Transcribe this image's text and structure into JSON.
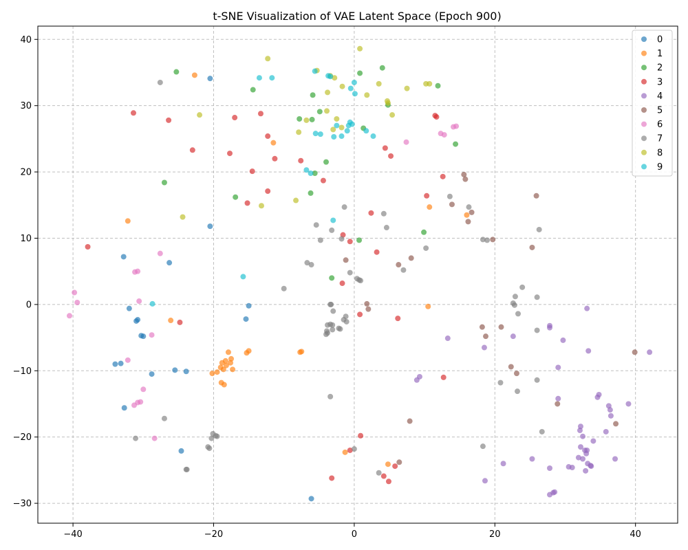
{
  "chart_data": {
    "type": "scatter",
    "title": "t-SNE Visualization of VAE Latent Space (Epoch 900)",
    "xlabel": "",
    "ylabel": "",
    "xlim": [
      -45,
      46
    ],
    "ylim": [
      -33,
      42
    ],
    "xticks": [
      -40,
      -20,
      0,
      20,
      40
    ],
    "yticks": [
      -30,
      -20,
      -10,
      0,
      10,
      20,
      30,
      40
    ],
    "grid": true,
    "legend_position": "top-right",
    "series": [
      {
        "name": "0",
        "color": "#1f77b4",
        "points": [
          [
            -20.5,
            34.1
          ],
          [
            -20.5,
            11.8
          ],
          [
            -32.8,
            7.2
          ],
          [
            -26.3,
            6.3
          ],
          [
            -15,
            -0.2
          ],
          [
            -32,
            -0.6
          ],
          [
            -15.4,
            -2.2
          ],
          [
            -30.8,
            -2.3
          ],
          [
            -31,
            -2.5
          ],
          [
            -30.3,
            -4.7
          ],
          [
            -30,
            -4.8
          ],
          [
            -34,
            -9
          ],
          [
            -33.2,
            -8.9
          ],
          [
            -28.8,
            -10.5
          ],
          [
            -25.5,
            -9.9
          ],
          [
            -23.9,
            -10.1
          ],
          [
            -32.7,
            -15.6
          ],
          [
            -24.6,
            -22.1
          ],
          [
            -6.1,
            -29.3
          ]
        ]
      },
      {
        "name": "1",
        "color": "#ff7f0e",
        "points": [
          [
            -22.7,
            34.6
          ],
          [
            -11.5,
            24.4
          ],
          [
            -32.2,
            12.6
          ],
          [
            -26.1,
            -2.4
          ],
          [
            10.7,
            14.7
          ],
          [
            16,
            13.5
          ],
          [
            10.5,
            -0.3
          ],
          [
            -17.9,
            -7.2
          ],
          [
            -17.5,
            -8.2
          ],
          [
            -18.3,
            -8.5
          ],
          [
            -18.8,
            -8.8
          ],
          [
            -19,
            -9.5
          ],
          [
            -18.6,
            -9.8
          ],
          [
            -19.5,
            -10.2
          ],
          [
            -20.2,
            -10.4
          ],
          [
            -17.3,
            -9.8
          ],
          [
            -18.9,
            -11.8
          ],
          [
            -18.5,
            -12.1
          ],
          [
            -18.2,
            -9.2
          ],
          [
            -17.6,
            -8.8
          ],
          [
            -15,
            -7
          ],
          [
            -15.3,
            -7.3
          ],
          [
            -7.5,
            -7.1
          ],
          [
            -7.7,
            -7.2
          ],
          [
            -1.3,
            -22.3
          ],
          [
            4.8,
            -24.1
          ]
        ]
      },
      {
        "name": "2",
        "color": "#2ca02c",
        "points": [
          [
            -25.3,
            35.1
          ],
          [
            -14.4,
            32.4
          ],
          [
            0.8,
            34.9
          ],
          [
            4,
            35.7
          ],
          [
            -5.9,
            31.6
          ],
          [
            11.9,
            33
          ],
          [
            4.8,
            30.1
          ],
          [
            -4.9,
            29.1
          ],
          [
            -7.8,
            28
          ],
          [
            -6,
            27.9
          ],
          [
            1.3,
            26.6
          ],
          [
            14.4,
            24.2
          ],
          [
            -4,
            21.5
          ],
          [
            -5.6,
            19.8
          ],
          [
            -6.2,
            16.8
          ],
          [
            -16.9,
            16.2
          ],
          [
            -27,
            18.4
          ],
          [
            9.9,
            10.9
          ],
          [
            0.7,
            9.7
          ],
          [
            -3.2,
            4
          ]
        ]
      },
      {
        "name": "3",
        "color": "#d62728",
        "points": [
          [
            -31.4,
            28.9
          ],
          [
            -13.3,
            28.8
          ],
          [
            -26.4,
            27.8
          ],
          [
            -17,
            28.2
          ],
          [
            -12.3,
            25.4
          ],
          [
            -23,
            23.3
          ],
          [
            -17.7,
            22.8
          ],
          [
            -11.3,
            22
          ],
          [
            -7.6,
            21.7
          ],
          [
            -14.5,
            20.1
          ],
          [
            11.5,
            28.5
          ],
          [
            11.7,
            28.3
          ],
          [
            4.4,
            23.6
          ],
          [
            5.2,
            22.4
          ],
          [
            -4.4,
            18.7
          ],
          [
            12.6,
            19.3
          ],
          [
            -12.3,
            17.1
          ],
          [
            -15.2,
            15.3
          ],
          [
            10.3,
            16.4
          ],
          [
            2.4,
            13.8
          ],
          [
            -1.6,
            10.5
          ],
          [
            -0.6,
            9.5
          ],
          [
            -37.9,
            8.7
          ],
          [
            3.2,
            7.9
          ],
          [
            -1.7,
            3.2
          ],
          [
            6.2,
            -2.1
          ],
          [
            -24.8,
            -2.7
          ],
          [
            0.8,
            -1.5
          ],
          [
            12.7,
            -11
          ],
          [
            0.9,
            -19.8
          ],
          [
            -0.6,
            -22
          ],
          [
            5.8,
            -24.4
          ],
          [
            -3.2,
            -26.2
          ],
          [
            4.2,
            -25.9
          ],
          [
            4.9,
            -26.7
          ]
        ]
      },
      {
        "name": "4",
        "color": "#9467bd",
        "points": [
          [
            33.1,
            -0.6
          ],
          [
            27.8,
            -3.2
          ],
          [
            27.8,
            -3.5
          ],
          [
            22.6,
            -4.8
          ],
          [
            13.3,
            -5.1
          ],
          [
            29.7,
            -5.4
          ],
          [
            18.5,
            -6.5
          ],
          [
            33.3,
            -7
          ],
          [
            42,
            -7.2
          ],
          [
            29,
            -9.5
          ],
          [
            9.3,
            -10.9
          ],
          [
            8.9,
            -11.4
          ],
          [
            29,
            -14.2
          ],
          [
            34.6,
            -14
          ],
          [
            34.8,
            -13.6
          ],
          [
            39,
            -15
          ],
          [
            36.2,
            -15.3
          ],
          [
            36.4,
            -15.9
          ],
          [
            36.5,
            -16.8
          ],
          [
            32.2,
            -18.4
          ],
          [
            32.1,
            -19
          ],
          [
            32.5,
            -19.9
          ],
          [
            35.8,
            -19.2
          ],
          [
            34,
            -20.6
          ],
          [
            32.2,
            -21.5
          ],
          [
            32.8,
            -22
          ],
          [
            33.1,
            -22
          ],
          [
            33,
            -22.5
          ],
          [
            31.9,
            -23.1
          ],
          [
            32.5,
            -23.3
          ],
          [
            37.1,
            -23.3
          ],
          [
            25.3,
            -23.3
          ],
          [
            21.2,
            -24
          ],
          [
            33.2,
            -24
          ],
          [
            33.6,
            -24.3
          ],
          [
            33.7,
            -24.4
          ],
          [
            30.5,
            -24.5
          ],
          [
            31,
            -24.6
          ],
          [
            27.8,
            -24.7
          ],
          [
            32.9,
            -25.1
          ],
          [
            18.6,
            -26.6
          ],
          [
            28.5,
            -28.3
          ],
          [
            28.3,
            -28.4
          ],
          [
            27.8,
            -28.7
          ]
        ]
      },
      {
        "name": "5",
        "color": "#8c564b",
        "points": [
          [
            25.9,
            16.4
          ],
          [
            15.6,
            19.6
          ],
          [
            15.8,
            18.9
          ],
          [
            13.9,
            15.1
          ],
          [
            16.7,
            13.9
          ],
          [
            16.2,
            12.5
          ],
          [
            25.3,
            8.6
          ],
          [
            19.7,
            9.8
          ],
          [
            8.1,
            7
          ],
          [
            6.3,
            6
          ],
          [
            -1.2,
            6.7
          ],
          [
            1.8,
            0.1
          ],
          [
            2,
            -0.7
          ],
          [
            18.2,
            -3.4
          ],
          [
            20.9,
            -3.4
          ],
          [
            18.7,
            -4.8
          ],
          [
            22.3,
            -9.4
          ],
          [
            23.1,
            -10.4
          ],
          [
            39.9,
            -7.2
          ],
          [
            28.9,
            -15
          ],
          [
            37.2,
            -18
          ],
          [
            7.9,
            -17.6
          ],
          [
            6.4,
            -23.8
          ]
        ]
      },
      {
        "name": "6",
        "color": "#e377c2",
        "points": [
          [
            14.1,
            26.8
          ],
          [
            14.5,
            26.9
          ],
          [
            12.3,
            25.8
          ],
          [
            12.8,
            25.6
          ],
          [
            7.4,
            24.5
          ],
          [
            -27.6,
            7.7
          ],
          [
            -31.2,
            4.9
          ],
          [
            -30.8,
            5
          ],
          [
            -39.8,
            1.8
          ],
          [
            -39.4,
            0.3
          ],
          [
            -30.6,
            0.5
          ],
          [
            -40.5,
            -1.7
          ],
          [
            -28.8,
            -4.6
          ],
          [
            -32.2,
            -8.4
          ],
          [
            -30,
            -12.8
          ],
          [
            -30.4,
            -14.7
          ],
          [
            -30.8,
            -14.8
          ],
          [
            -31.3,
            -15.2
          ],
          [
            -28.4,
            -20.2
          ]
        ]
      },
      {
        "name": "7",
        "color": "#7f7f7f",
        "points": [
          [
            -27.6,
            33.5
          ],
          [
            13.6,
            16.3
          ],
          [
            16.3,
            14.7
          ],
          [
            -1.4,
            14.7
          ],
          [
            4.2,
            13.7
          ],
          [
            -5.4,
            12
          ],
          [
            -3.2,
            11.2
          ],
          [
            4.6,
            11.6
          ],
          [
            26.3,
            11.3
          ],
          [
            18.3,
            9.8
          ],
          [
            18.9,
            9.7
          ],
          [
            -4.8,
            9.7
          ],
          [
            -1.8,
            9.9
          ],
          [
            10.2,
            8.5
          ],
          [
            -6.7,
            6.3
          ],
          [
            -6.1,
            6
          ],
          [
            7,
            5.2
          ],
          [
            -0.6,
            4.8
          ],
          [
            0.4,
            3.9
          ],
          [
            0.7,
            3.7
          ],
          [
            0.9,
            3.6
          ],
          [
            23.9,
            2.6
          ],
          [
            -10,
            2.4
          ],
          [
            22.9,
            1.2
          ],
          [
            26,
            1.1
          ],
          [
            -3.3,
            0
          ],
          [
            -3.4,
            0
          ],
          [
            22.6,
            0.2
          ],
          [
            22.8,
            -0.1
          ],
          [
            -3,
            -1
          ],
          [
            23.3,
            -1.4
          ],
          [
            -1.2,
            -1.8
          ],
          [
            -1.5,
            -2.3
          ],
          [
            -1.1,
            -2.6
          ],
          [
            -3.8,
            -3.1
          ],
          [
            -3.4,
            -3
          ],
          [
            -3.1,
            -3.1
          ],
          [
            -2,
            -3.7
          ],
          [
            -2.2,
            -3.6
          ],
          [
            -3.1,
            -3.8
          ],
          [
            -3.9,
            -4
          ],
          [
            -3.8,
            -4.3
          ],
          [
            -4,
            -4.5
          ],
          [
            26,
            -3.9
          ],
          [
            26,
            -11.4
          ],
          [
            20.8,
            -11.8
          ],
          [
            23.2,
            -13.1
          ],
          [
            -3.4,
            -13.9
          ],
          [
            -27,
            -17.2
          ],
          [
            26.7,
            -19.2
          ],
          [
            -20.1,
            -19.5
          ],
          [
            -19.7,
            -19.8
          ],
          [
            -19.5,
            -19.9
          ],
          [
            -20.3,
            -20.2
          ],
          [
            -31.1,
            -20.2
          ],
          [
            18.3,
            -21.4
          ],
          [
            -20.6,
            -21.7
          ],
          [
            -20.8,
            -21.5
          ],
          [
            0,
            -21.8
          ],
          [
            -23.9,
            -24.9
          ],
          [
            -23.8,
            -24.9
          ],
          [
            3.5,
            -25.4
          ]
        ]
      },
      {
        "name": "8",
        "color": "#bcbd22",
        "points": [
          [
            -12.3,
            37.1
          ],
          [
            0.8,
            38.6
          ],
          [
            -5.3,
            35.3
          ],
          [
            -3.4,
            34.5
          ],
          [
            -2.8,
            34.2
          ],
          [
            3.5,
            33.3
          ],
          [
            10.2,
            33.3
          ],
          [
            10.7,
            33.3
          ],
          [
            -1.7,
            32.9
          ],
          [
            7.5,
            32.6
          ],
          [
            -3.8,
            32
          ],
          [
            1.8,
            31.6
          ],
          [
            4.7,
            30.7
          ],
          [
            4.8,
            30.4
          ],
          [
            -3.9,
            29.2
          ],
          [
            5.4,
            28.6
          ],
          [
            -22,
            28.6
          ],
          [
            -2.5,
            28
          ],
          [
            -6.8,
            27.8
          ],
          [
            -1.8,
            26.7
          ],
          [
            -3,
            26.4
          ],
          [
            -7.9,
            26
          ],
          [
            -8.3,
            15.7
          ],
          [
            -13.2,
            14.9
          ],
          [
            -24.4,
            13.2
          ]
        ]
      },
      {
        "name": "9",
        "color": "#17becf",
        "points": [
          [
            -5.6,
            35.2
          ],
          [
            -3.7,
            34.5
          ],
          [
            -3.4,
            34.4
          ],
          [
            -13.5,
            34.2
          ],
          [
            -11.7,
            34.2
          ],
          [
            0,
            33.5
          ],
          [
            -0.5,
            32.6
          ],
          [
            0.1,
            31.8
          ],
          [
            -0.6,
            27.5
          ],
          [
            -0.8,
            27
          ],
          [
            -0.3,
            27.2
          ],
          [
            -1,
            26.2
          ],
          [
            -2.5,
            27
          ],
          [
            1.7,
            26.2
          ],
          [
            -5.5,
            25.8
          ],
          [
            -4.8,
            25.7
          ],
          [
            -1.8,
            25.4
          ],
          [
            -2.9,
            25.3
          ],
          [
            2.7,
            25.4
          ],
          [
            -6.8,
            20.3
          ],
          [
            -6.2,
            19.8
          ],
          [
            -3,
            12.7
          ],
          [
            -15.8,
            4.2
          ],
          [
            -28.7,
            0.1
          ]
        ]
      }
    ]
  }
}
